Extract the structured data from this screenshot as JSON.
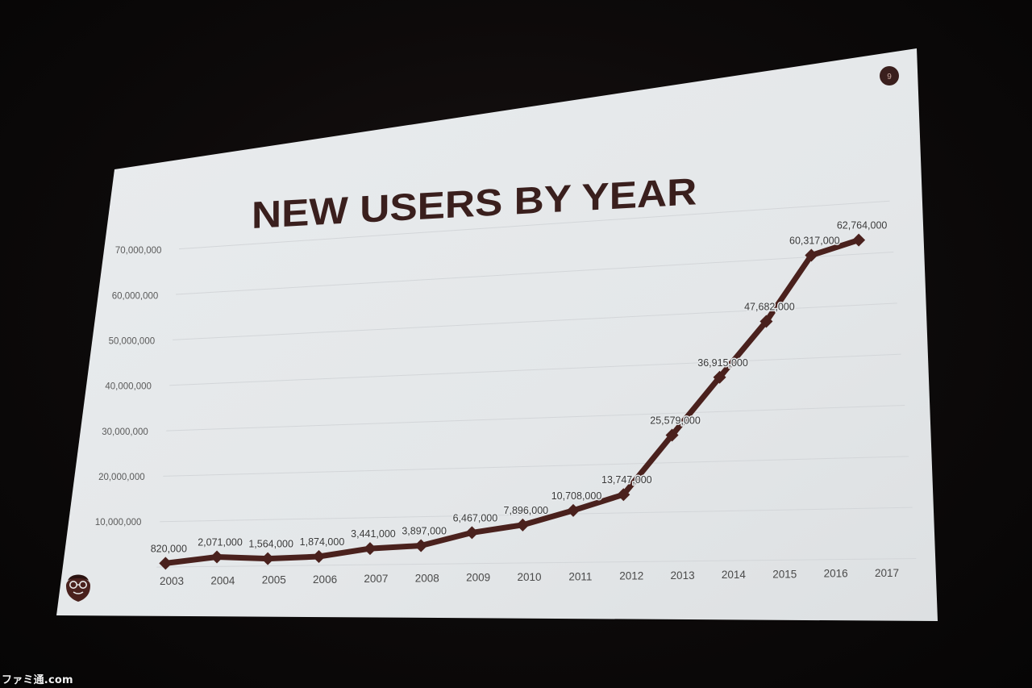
{
  "slide": {
    "title": "NEW USERS BY YEAR",
    "page_number": "9"
  },
  "watermark": "ファミ通.com",
  "colors": {
    "line": "#4a211d",
    "title": "#3a1f1d",
    "slide_background": "#e6e9eb",
    "page_badge": "#3a1f1d"
  },
  "logo_icon": "bearded-face-icon",
  "chart_data": {
    "type": "line",
    "title": "NEW USERS BY YEAR",
    "xlabel": "",
    "ylabel": "",
    "categories": [
      "2003",
      "2004",
      "2005",
      "2006",
      "2007",
      "2008",
      "2009",
      "2010",
      "2011",
      "2012",
      "2013",
      "2014",
      "2015",
      "2016",
      "2017"
    ],
    "series": [
      {
        "values": [
          820000,
          2071000,
          1564000,
          1874000,
          3441000,
          3897000,
          6467000,
          7896000,
          10708000,
          13747000,
          25579000,
          36915000,
          47682000,
          60317000,
          62764000
        ]
      }
    ],
    "data_labels": [
      "820,000",
      "2,071,000",
      "1,564,000",
      "1,874,000",
      "3,441,000",
      "3,897,000",
      "6,467,000",
      "7,896,000",
      "10,708,000",
      "13,747,000",
      "25,579,000",
      "36,915,000",
      "47,682,000",
      "60,317,000",
      "62,764,000"
    ],
    "ylim": [
      0,
      70000000
    ],
    "yticks": [
      10000000,
      20000000,
      30000000,
      40000000,
      50000000,
      60000000,
      70000000
    ],
    "ytick_labels": [
      "10,000,000",
      "20,000,000",
      "30,000,000",
      "40,000,000",
      "50,000,000",
      "60,000,000",
      "70,000,000"
    ],
    "grid": true,
    "legend": "none",
    "marker": "diamond"
  }
}
